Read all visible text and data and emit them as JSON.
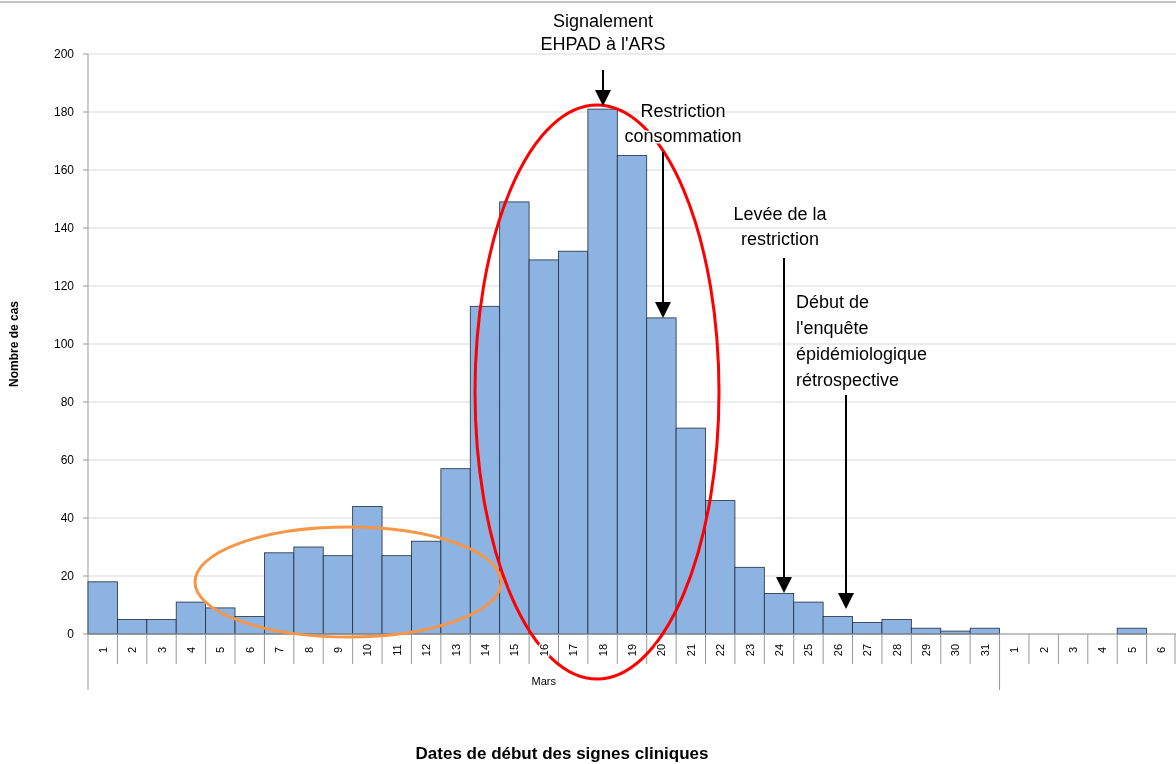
{
  "chart_data": {
    "type": "bar",
    "ylabel": "Nombre de cas",
    "categories": [
      "1",
      "2",
      "3",
      "4",
      "5",
      "6",
      "7",
      "8",
      "9",
      "10",
      "11",
      "12",
      "13",
      "14",
      "15",
      "16",
      "17",
      "18",
      "19",
      "20",
      "21",
      "22",
      "23",
      "24",
      "25",
      "26",
      "27",
      "28",
      "29",
      "30",
      "31",
      "1",
      "2",
      "3",
      "4",
      "5",
      "6"
    ],
    "values": [
      18,
      5,
      5,
      11,
      9,
      6,
      28,
      30,
      27,
      44,
      27,
      32,
      57,
      113,
      149,
      129,
      132,
      181,
      165,
      109,
      71,
      46,
      23,
      14,
      11,
      6,
      4,
      5,
      2,
      1,
      2,
      0,
      0,
      0,
      0,
      2,
      0
    ],
    "color": "#8db3e2",
    "ylim": [
      0,
      200
    ],
    "yticks": [
      0,
      20,
      40,
      60,
      80,
      100,
      120,
      140,
      160,
      180,
      200
    ],
    "grid": "y",
    "annotations": [
      "Signalement\nEHPAD à l'ARS",
      "Restriction\nconsommation",
      "Levée de la\nrestriction",
      "Début de\nl'enquête\népidémiologique\nrétrospective",
      "Mars",
      "Dates de début des signes cliniques"
    ]
  }
}
